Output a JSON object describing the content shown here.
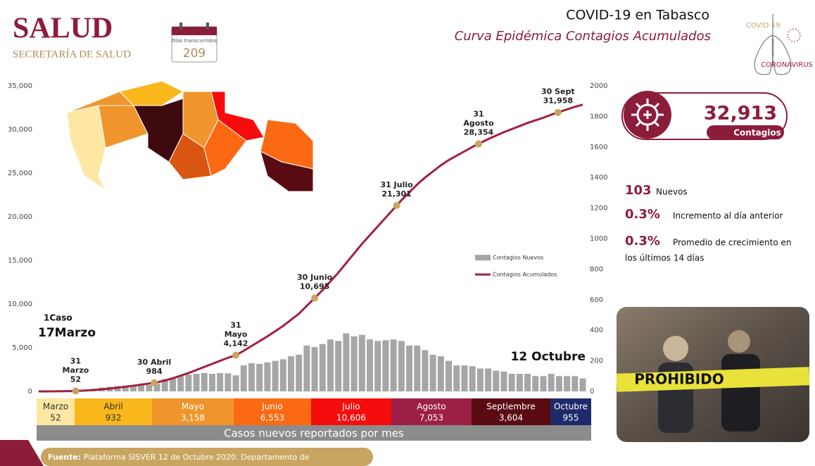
{
  "header": {
    "logo": "SALUD",
    "logo_sub": "SECRETARÍA DE SALUD",
    "days_label": "Días transcurridos",
    "days": "209",
    "title": "COVID-19 en Tabasco",
    "subtitle": "Curva Epidémica Contagios Acumulados",
    "badge_top": "COVID-19",
    "badge_bottom": "CORONAVIRUS"
  },
  "chart_data": {
    "type": "line",
    "categories": [
      null,
      null,
      null,
      null,
      null,
      null,
      null,
      null,
      null,
      null,
      null,
      null,
      null,
      null,
      null,
      null,
      null,
      null,
      null,
      null,
      null,
      null,
      null,
      null,
      null,
      null,
      null,
      null,
      null,
      null,
      null,
      null,
      null,
      null,
      null,
      null,
      null,
      null,
      null,
      null,
      null,
      null,
      null,
      null,
      null,
      null,
      null,
      null,
      null,
      null,
      null,
      null,
      null,
      null,
      null,
      null,
      null,
      null,
      null,
      null,
      null,
      null,
      null,
      null,
      null,
      null,
      null,
      null,
      null,
      null
    ],
    "series": [
      {
        "name": "Contagios Nuevos",
        "type": "bar",
        "color": "#a6a6a6",
        "axis": "y2",
        "values": [
          0,
          1,
          2,
          3,
          5,
          8,
          12,
          18,
          25,
          30,
          35,
          38,
          40,
          45,
          42,
          50,
          80,
          90,
          100,
          110,
          115,
          120,
          115,
          120,
          118,
          105,
          170,
          185,
          180,
          190,
          200,
          210,
          230,
          240,
          300,
          290,
          310,
          340,
          330,
          380,
          360,
          370,
          340,
          330,
          335,
          340,
          330,
          300,
          300,
          270,
          240,
          230,
          200,
          170,
          170,
          165,
          150,
          150,
          135,
          130,
          115,
          115,
          115,
          100,
          100,
          115,
          100,
          100,
          100,
          85
        ]
      },
      {
        "name": "Contagios Acumulados",
        "color": "#a3203f",
        "values": [
          1,
          3,
          8,
          18,
          35,
          60,
          100,
          160,
          230,
          320,
          420,
          530,
          650,
          780,
          900,
          1030,
          1250,
          1500,
          1800,
          2100,
          2450,
          2800,
          3150,
          3500,
          3850,
          4142,
          4650,
          5200,
          5750,
          6300,
          6900,
          7500,
          8200,
          8900,
          9800,
          10695,
          11600,
          12600,
          13600,
          14700,
          15800,
          16900,
          17900,
          18900,
          19900,
          20900,
          21900,
          22800,
          23700,
          24500,
          25200,
          25900,
          26500,
          27000,
          27500,
          28000,
          28450,
          28900,
          29300,
          29700,
          30050,
          30400,
          30750,
          31050,
          31350,
          31700,
          32000,
          32300,
          32600,
          32850
        ]
      }
    ],
    "ylim": [
      0,
      35000
    ],
    "yticks": [
      0,
      {
        "value": 5000,
        "label": "5,000"
      },
      {
        "value": 10000,
        "label": "10,000"
      },
      {
        "value": 15000,
        "label": "15,000"
      },
      {
        "value": 20000,
        "label": "20,000"
      },
      {
        "value": 25000,
        "label": "25,000"
      },
      {
        "value": 30000,
        "label": "30,000"
      },
      {
        "value": 35000,
        "label": "35,000"
      }
    ],
    "y2lim": [
      0,
      2000
    ],
    "y2ticks": [
      0,
      200,
      400,
      600,
      800,
      1000,
      1200,
      1400,
      1600,
      1800,
      2000
    ],
    "annotations": {
      "dates": [
        [
          "31",
          "Marzo"
        ],
        [
          "30 Abril"
        ],
        [
          "31",
          "Mayo"
        ],
        [
          "30 Junio"
        ],
        [
          "31 Julio"
        ],
        [
          "31",
          "Agosto"
        ],
        [
          "30 Sept"
        ]
      ],
      "values": [
        52,
        984,
        4142,
        10695,
        21301,
        28354,
        31958
      ],
      "value_labels": [
        "52",
        "984",
        "4,142",
        "10,695",
        "21,301",
        "28,354",
        "31,958"
      ],
      "marker_color": "#c8a560"
    },
    "first_case": {
      "count": "1Caso",
      "date": "17Marzo"
    },
    "last_date": "12 Octubre"
  },
  "stats": {
    "total": "32,913",
    "total_label": "Contagios",
    "new": "103",
    "new_label": "Nuevos",
    "daily_pct": "0.3%",
    "daily_label": "Incremento al día anterior",
    "avg_pct": "0.3%",
    "avg_label_1": "Promedio de crecimiento en",
    "avg_label_2": "los últimos 14 días"
  },
  "months": {
    "names": [
      "Marzo",
      "Abril",
      "Mayo",
      "Junio",
      "Julio",
      "Agosto",
      "Septiembre",
      "Octubre"
    ],
    "counts": [
      "52",
      "932",
      "3,158",
      "6,553",
      "10,606",
      "7,053",
      "3,604",
      "955"
    ],
    "colors": [
      "#fde7a3",
      "#f9b71b",
      "#ef952c",
      "#fb6a12",
      "#f50d0d",
      "#9c1f45",
      "#5a0b12",
      "#1e2b6b"
    ],
    "caption": "Casos nuevos reportados por mes"
  },
  "photo_text": "PROHIBIDO",
  "footer": {
    "label": "Fuente:",
    "text": " Plataforma SISVER 12 de Octubre 2020. Departamento de"
  }
}
